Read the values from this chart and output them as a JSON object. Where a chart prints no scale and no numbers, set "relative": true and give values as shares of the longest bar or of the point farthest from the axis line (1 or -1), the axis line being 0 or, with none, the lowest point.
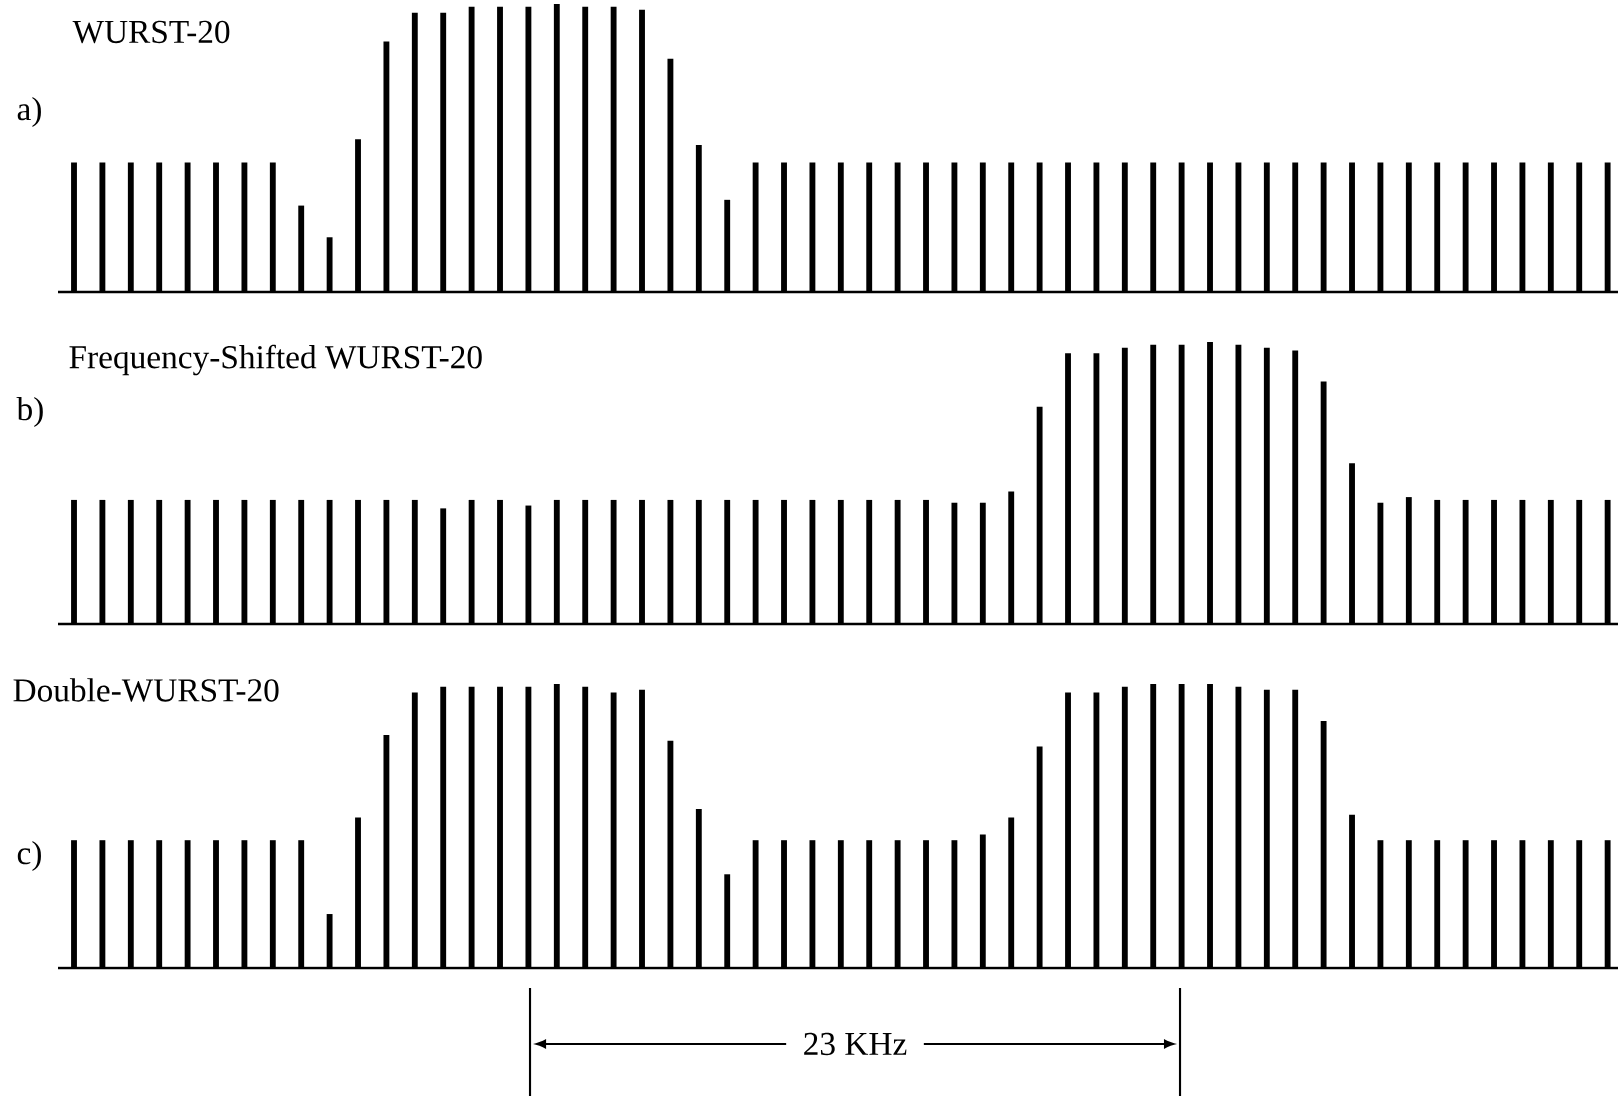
{
  "chart_data": [
    {
      "type": "bar",
      "title": "WURST-20",
      "annotations": [
        "a)"
      ],
      "color": "#000000",
      "relative": true,
      "categories": [
        null,
        null,
        null,
        null,
        null,
        null,
        null,
        null,
        null,
        null,
        null,
        null,
        null,
        null,
        null,
        null,
        null,
        null,
        null,
        null,
        null,
        null,
        null,
        null,
        null,
        null,
        null,
        null,
        null,
        null,
        null,
        null,
        null,
        null,
        null,
        null,
        null,
        null,
        null,
        null,
        null,
        null,
        null,
        null,
        null,
        null,
        null,
        null,
        null,
        null,
        null,
        null,
        null,
        null,
        null
      ],
      "values": [
        0.45,
        0.45,
        0.45,
        0.45,
        0.45,
        0.45,
        0.45,
        0.45,
        0.3,
        0.19,
        0.53,
        0.87,
        0.97,
        0.97,
        0.99,
        0.99,
        0.99,
        1,
        0.99,
        0.99,
        0.98,
        0.81,
        0.51,
        0.32,
        0.45,
        0.45,
        0.45,
        0.45,
        0.45,
        0.45,
        0.45,
        0.45,
        0.45,
        0.45,
        0.45,
        0.45,
        0.45,
        0.45,
        0.45,
        0.45,
        0.45,
        0.45,
        0.45,
        0.45,
        0.45,
        0.45,
        0.45,
        0.45,
        0.45,
        0.45,
        0.45,
        0.45,
        0.45,
        0.45,
        0.45
      ]
    },
    {
      "type": "bar",
      "title": "Frequency-Shifted WURST-20",
      "annotations": [
        "b)"
      ],
      "color": "#000000",
      "relative": true,
      "categories": [
        null,
        null,
        null,
        null,
        null,
        null,
        null,
        null,
        null,
        null,
        null,
        null,
        null,
        null,
        null,
        null,
        null,
        null,
        null,
        null,
        null,
        null,
        null,
        null,
        null,
        null,
        null,
        null,
        null,
        null,
        null,
        null,
        null,
        null,
        null,
        null,
        null,
        null,
        null,
        null,
        null,
        null,
        null,
        null,
        null,
        null,
        null,
        null,
        null,
        null,
        null,
        null,
        null,
        null,
        null
      ],
      "values": [
        0.44,
        0.44,
        0.44,
        0.44,
        0.44,
        0.44,
        0.44,
        0.44,
        0.44,
        0.44,
        0.44,
        0.44,
        0.44,
        0.41,
        0.44,
        0.44,
        0.42,
        0.44,
        0.44,
        0.44,
        0.44,
        0.44,
        0.44,
        0.44,
        0.44,
        0.44,
        0.44,
        0.44,
        0.44,
        0.44,
        0.44,
        0.43,
        0.43,
        0.47,
        0.77,
        0.96,
        0.96,
        0.98,
        0.99,
        0.99,
        1,
        0.99,
        0.98,
        0.97,
        0.86,
        0.57,
        0.43,
        0.45,
        0.44,
        0.44,
        0.44,
        0.44,
        0.44,
        0.44,
        0.44
      ]
    },
    {
      "type": "bar",
      "title": "Double-WURST-20",
      "annotations": [
        "c)",
        "23 KHz"
      ],
      "color": "#000000",
      "relative": true,
      "categories": [
        null,
        null,
        null,
        null,
        null,
        null,
        null,
        null,
        null,
        null,
        null,
        null,
        null,
        null,
        null,
        null,
        null,
        null,
        null,
        null,
        null,
        null,
        null,
        null,
        null,
        null,
        null,
        null,
        null,
        null,
        null,
        null,
        null,
        null,
        null,
        null,
        null,
        null,
        null,
        null,
        null,
        null,
        null,
        null,
        null,
        null,
        null,
        null,
        null,
        null,
        null,
        null,
        null,
        null,
        null
      ],
      "values": [
        0.45,
        0.45,
        0.45,
        0.45,
        0.45,
        0.45,
        0.45,
        0.45,
        0.45,
        0.19,
        0.53,
        0.82,
        0.97,
        0.99,
        0.99,
        0.99,
        0.99,
        1,
        0.99,
        0.97,
        0.98,
        0.8,
        0.56,
        0.33,
        0.45,
        0.45,
        0.45,
        0.45,
        0.45,
        0.45,
        0.45,
        0.45,
        0.47,
        0.53,
        0.78,
        0.97,
        0.97,
        0.99,
        1,
        1,
        1,
        0.99,
        0.98,
        0.98,
        0.87,
        0.54,
        0.45,
        0.45,
        0.45,
        0.45,
        0.45,
        0.45,
        0.45,
        0.45,
        0.45
      ]
    }
  ]
}
